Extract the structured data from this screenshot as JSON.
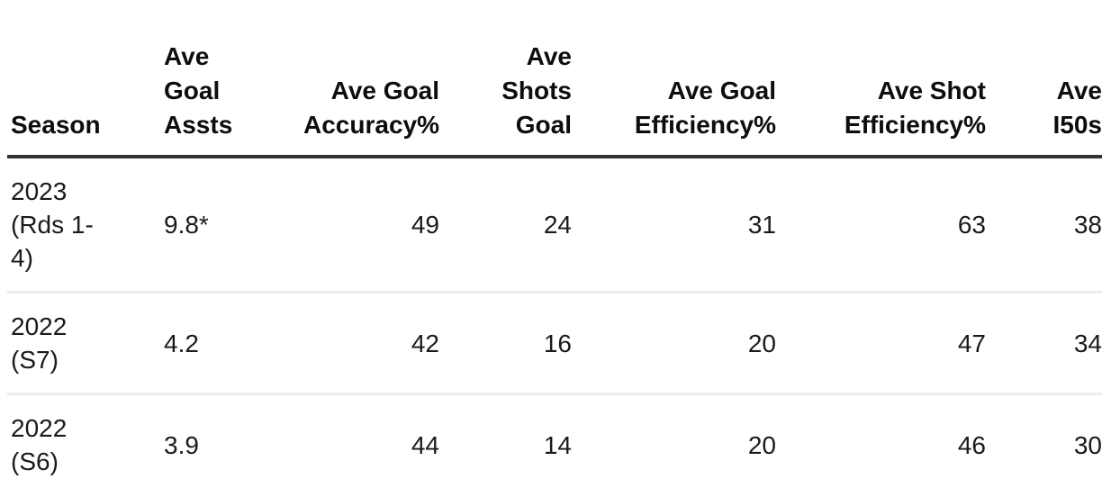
{
  "table": {
    "header": {
      "season": "Season",
      "ave_goal_assts": "Ave\nGoal\nAssts",
      "ave_goal_accuracy": "Ave Goal\nAccuracy%",
      "ave_shots_goal": "Ave\nShots\nGoal",
      "ave_goal_efficiency": "Ave Goal\nEfficiency%",
      "ave_shot_efficiency": "Ave Shot\nEfficiency%",
      "ave_i50s": "Ave\nI50s"
    },
    "rows": [
      {
        "season": "2023\n(Rds 1-\n4)",
        "ave_goal_assts": "9.8*",
        "ave_goal_accuracy": "49",
        "ave_shots_goal": "24",
        "ave_goal_efficiency": "31",
        "ave_shot_efficiency": "63",
        "ave_i50s": "38"
      },
      {
        "season": "2022\n(S7)",
        "ave_goal_assts": "4.2",
        "ave_goal_accuracy": "42",
        "ave_shots_goal": "16",
        "ave_goal_efficiency": "20",
        "ave_shot_efficiency": "47",
        "ave_i50s": "34"
      },
      {
        "season": "2022\n(S6)",
        "ave_goal_assts": "3.9",
        "ave_goal_accuracy": "44",
        "ave_shots_goal": "14",
        "ave_goal_efficiency": "20",
        "ave_shot_efficiency": "46",
        "ave_i50s": "30"
      }
    ]
  },
  "chart_data": {
    "type": "table",
    "columns": [
      "Season",
      "Ave Goal Assts",
      "Ave Goal Accuracy%",
      "Ave Shots Goal",
      "Ave Goal Efficiency%",
      "Ave Shot Efficiency%",
      "Ave I50s"
    ],
    "rows": [
      [
        "2023 (Rds 1-4)",
        "9.8*",
        49,
        24,
        31,
        63,
        38
      ],
      [
        "2022 (S7)",
        4.2,
        42,
        16,
        20,
        47,
        34
      ],
      [
        "2022 (S6)",
        3.9,
        44,
        14,
        20,
        46,
        30
      ]
    ],
    "layout_hints": {
      "header_alignment": [
        "left",
        "left",
        "right",
        "right",
        "right",
        "right",
        "right"
      ],
      "last_column_clipped_by_right_edge": true,
      "header_rule_color": "#333333",
      "row_rule_color": "#ededed"
    }
  },
  "colors": {
    "background": "#ffffff",
    "text": "#1a1a1a",
    "header_text": "#0d0d0d",
    "header_border": "#333333",
    "row_border": "#ededed"
  }
}
